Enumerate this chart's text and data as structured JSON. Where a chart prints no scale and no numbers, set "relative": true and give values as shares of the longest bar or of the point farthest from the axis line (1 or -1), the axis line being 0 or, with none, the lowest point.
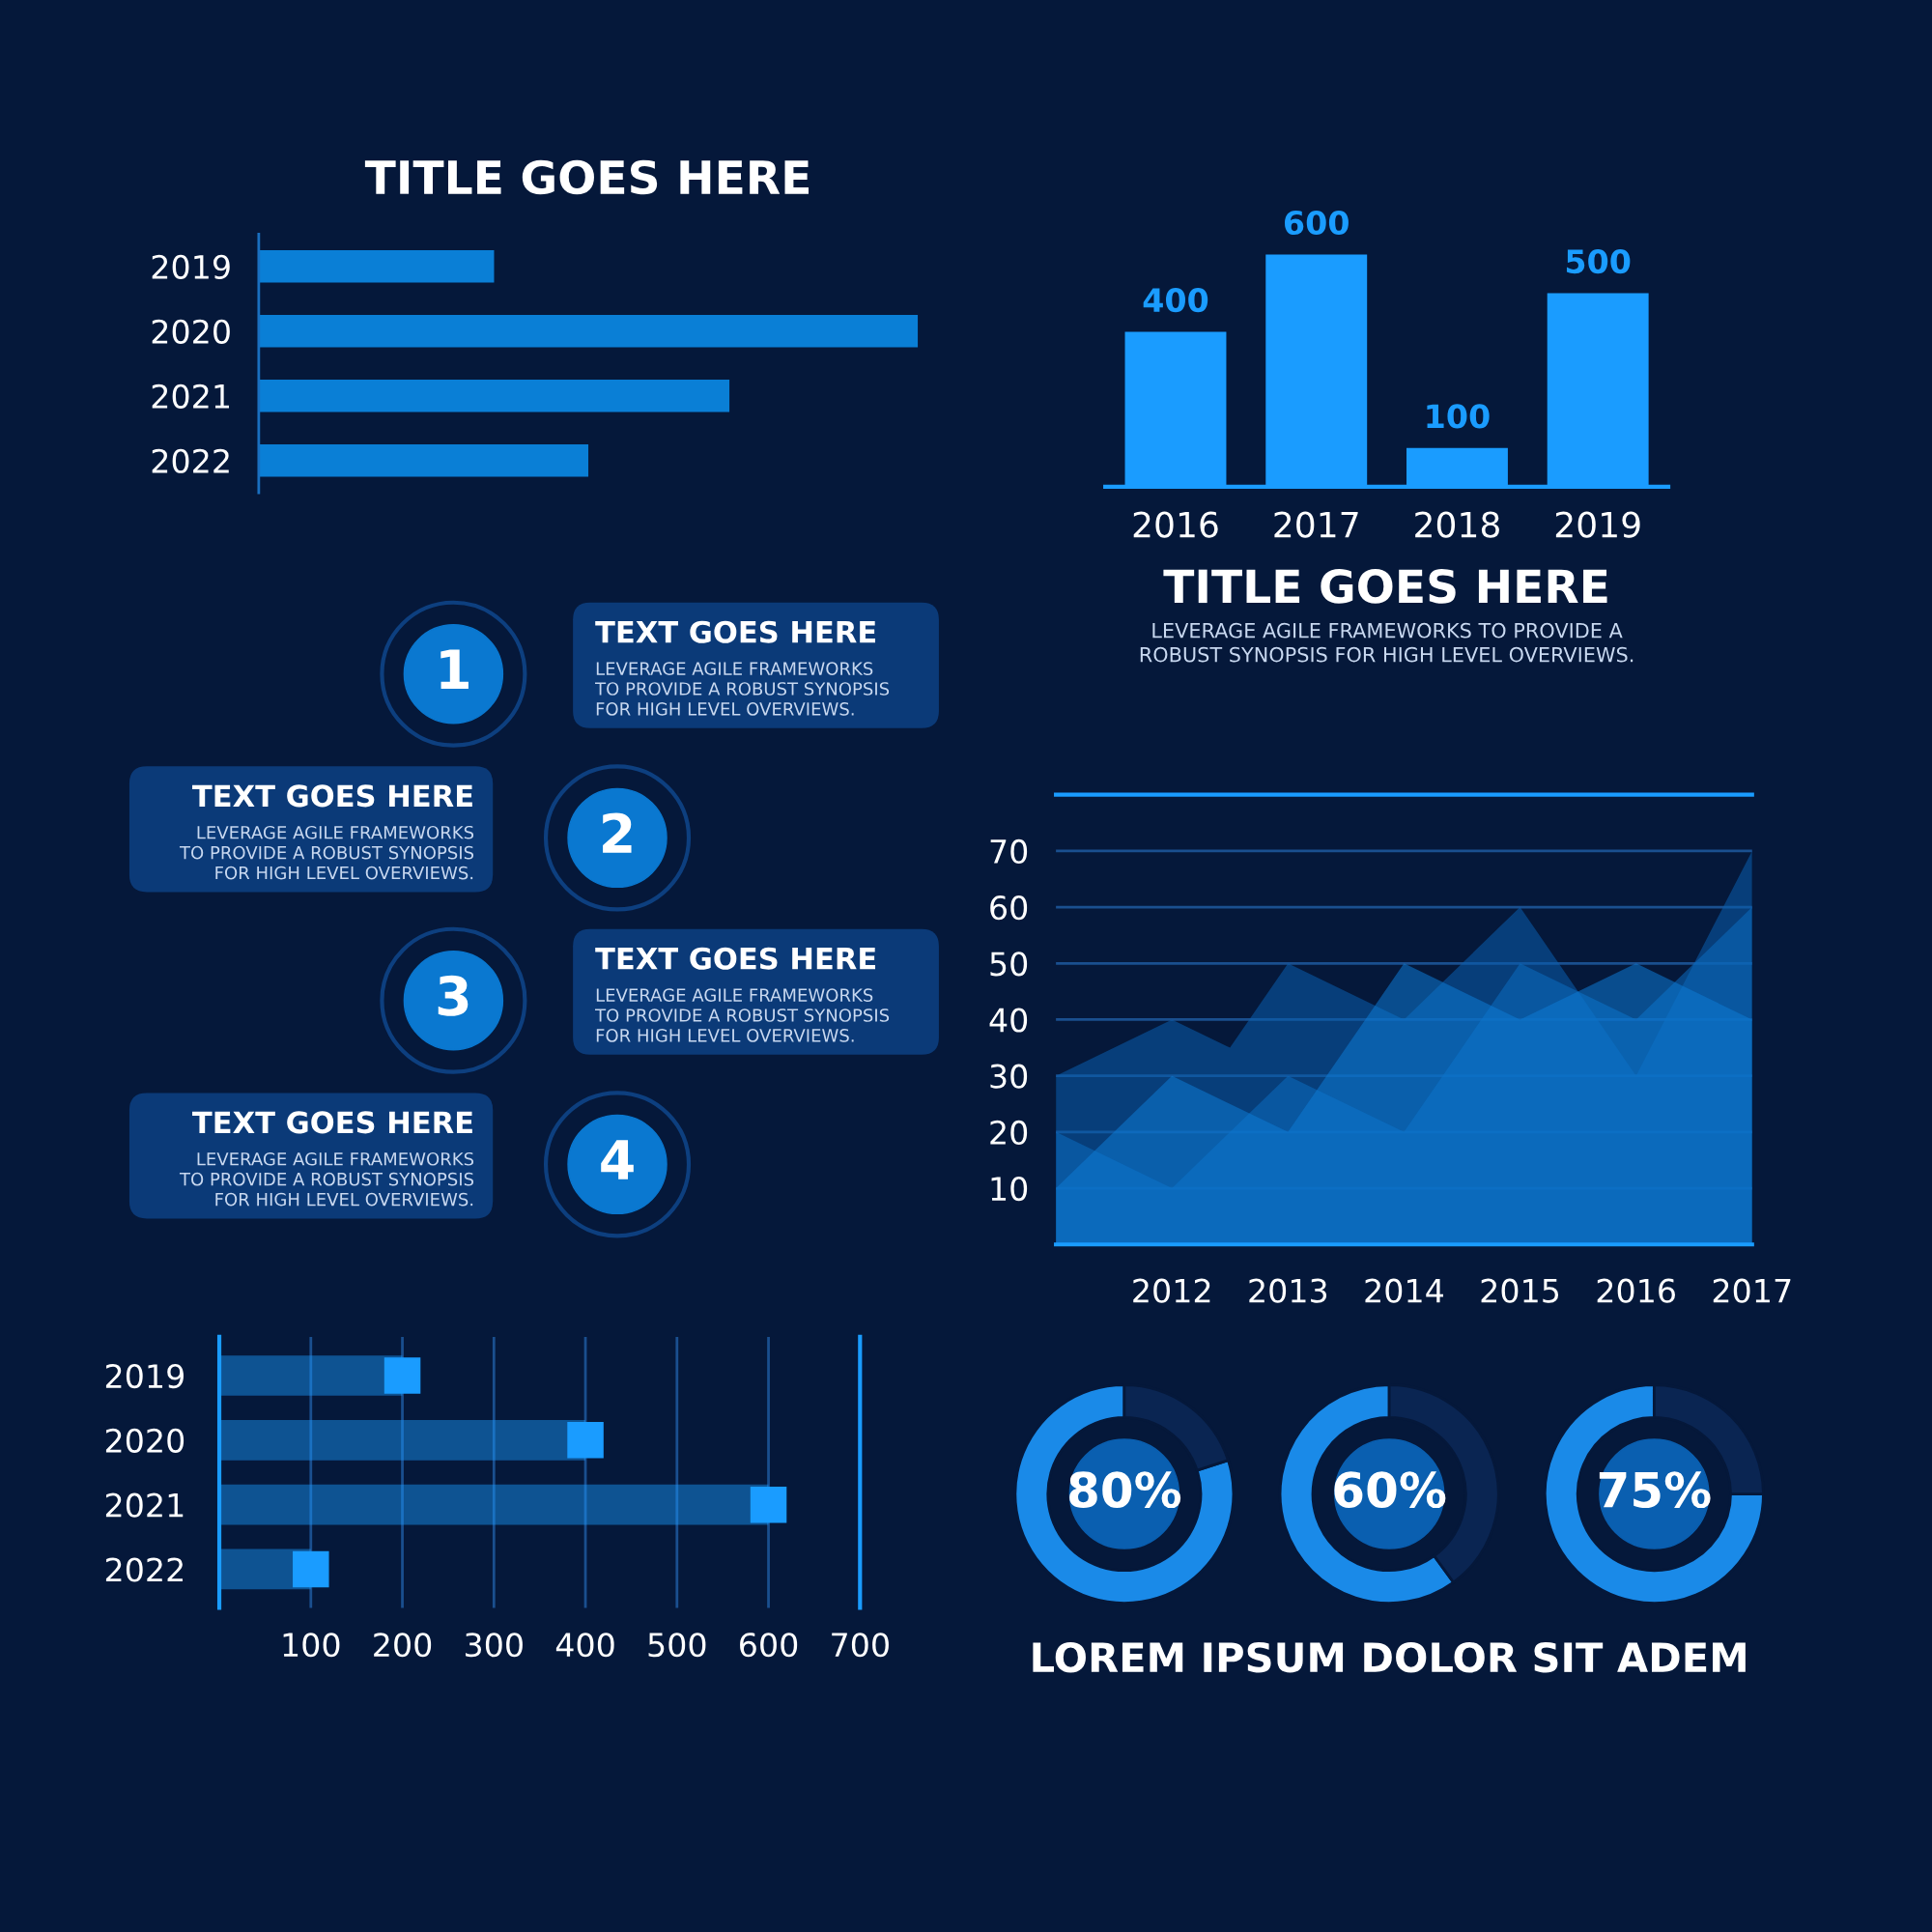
{
  "chart_data": [
    {
      "type": "bar",
      "orientation": "horizontal",
      "relative": true,
      "title": "TITLE GOES HERE",
      "categories": [
        "2019",
        "2020",
        "2021",
        "2022"
      ],
      "values": [
        0.357,
        1,
        0.714,
        0.5
      ],
      "color": "#0a7fd6"
    },
    {
      "type": "bar",
      "title": "TITLE GOES HERE",
      "subtitle": "LEVERAGE AGILE FRAMEWORKS TO PROVIDE A\nROBUST SYNOPSIS FOR HIGH LEVEL OVERVIEWS.",
      "categories": [
        "2016",
        "2017",
        "2018",
        "2019"
      ],
      "values": [
        400,
        600,
        100,
        500
      ],
      "color": "#1a9cff",
      "data_labels": true
    },
    {
      "type": "other",
      "annotations": [
        "1",
        "TEXT GOES HERE",
        "LEVERAGE AGILE FRAMEWORKS\nTO PROVIDE A ROBUST SYNOPSIS\nFOR HIGH LEVEL OVERVIEWS.",
        "2",
        "TEXT GOES HERE",
        "LEVERAGE AGILE FRAMEWORKS\nTO PROVIDE A ROBUST SYNOPSIS\nFOR HIGH LEVEL OVERVIEWS.",
        "3",
        "TEXT GOES HERE",
        "LEVERAGE AGILE FRAMEWORKS\nTO PROVIDE A ROBUST SYNOPSIS\nFOR HIGH LEVEL OVERVIEWS.",
        "4",
        "TEXT GOES HERE",
        "LEVERAGE AGILE FRAMEWORKS\nTO PROVIDE A ROBUST SYNOPSIS\nFOR HIGH LEVEL OVERVIEWS."
      ]
    },
    {
      "type": "area",
      "x": [
        2011,
        2012,
        2013,
        2014,
        2015,
        2016,
        2017
      ],
      "xlim": [
        2011,
        2017
      ],
      "xticks": [
        2012,
        2013,
        2014,
        2015,
        2016,
        2017
      ],
      "ylim": [
        0,
        80
      ],
      "yticks": [
        10,
        20,
        30,
        40,
        50,
        60,
        70
      ],
      "grid": "y",
      "series": [
        {
          "color": "#0a5fae",
          "x": [
            2011,
            2012,
            2012.5,
            2013,
            2014,
            2015,
            2016,
            2017
          ],
          "values": [
            30,
            40,
            35,
            50,
            40,
            60,
            30,
            70
          ]
        },
        {
          "color": "#0b6cc0",
          "values": [
            20,
            10,
            30,
            20,
            50,
            40,
            60
          ]
        },
        {
          "color": "#0c7ad4",
          "values": [
            10,
            30,
            20,
            50,
            40,
            50,
            40
          ]
        }
      ]
    },
    {
      "type": "lollipop",
      "orientation": "horizontal",
      "categories": [
        "2019",
        "2020",
        "2021",
        "2022"
      ],
      "values": [
        200,
        400,
        600,
        100
      ],
      "xlim": [
        0,
        700
      ],
      "xticks": [
        100,
        200,
        300,
        400,
        500,
        600,
        700
      ],
      "grid": "x",
      "color": "#1a9cff",
      "marker": "square"
    },
    {
      "type": "donut",
      "categories": [
        null,
        null
      ],
      "values": [
        80,
        20
      ],
      "colors": [
        "#1a8ae8",
        "#0a2552"
      ],
      "value_labels": [
        "80%",
        null
      ]
    },
    {
      "type": "donut",
      "categories": [
        null,
        null
      ],
      "values": [
        60,
        40
      ],
      "colors": [
        "#1a8ae8",
        "#0a2552"
      ],
      "value_labels": [
        "60%",
        null
      ],
      "annotations": [
        "LOREM IPSUM DOLOR SIT ADEM"
      ]
    },
    {
      "type": "donut",
      "categories": [
        null,
        null
      ],
      "values": [
        75,
        25
      ],
      "colors": [
        "#1a8ae8",
        "#0a2552"
      ],
      "value_labels": [
        "75%",
        null
      ]
    }
  ]
}
